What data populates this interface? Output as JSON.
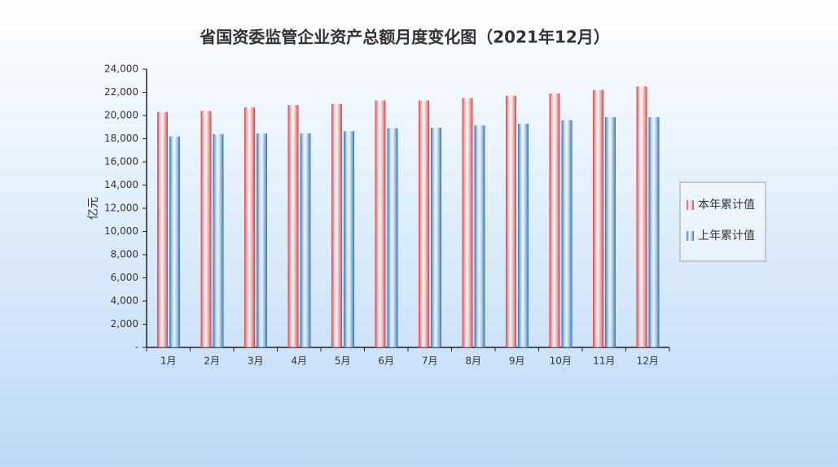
{
  "chart_data": {
    "type": "bar",
    "title": "省国资委监管企业资产总额月度变化图（2021年12月）",
    "y_label": "亿元",
    "categories": [
      "1月",
      "2月",
      "3月",
      "4月",
      "5月",
      "6月",
      "7月",
      "8月",
      "9月",
      "10月",
      "11月",
      "12月"
    ],
    "series": [
      {
        "name": "本年累计值",
        "color": "#e03a3a",
        "values": [
          20300,
          20400,
          20700,
          20900,
          21000,
          21300,
          21300,
          21500,
          21700,
          21900,
          22200,
          22500
        ]
      },
      {
        "name": "上年累计值",
        "color": "#2a72b8",
        "values": [
          18200,
          18400,
          18450,
          18450,
          18650,
          18900,
          18950,
          19150,
          19300,
          19600,
          19850,
          19850
        ]
      }
    ],
    "ylim": [
      0,
      24000
    ],
    "yticks": [
      {
        "value": 0,
        "label": "-"
      },
      {
        "value": 2000,
        "label": "2,000"
      },
      {
        "value": 4000,
        "label": "4,000"
      },
      {
        "value": 6000,
        "label": "6,000"
      },
      {
        "value": 8000,
        "label": "8,000"
      },
      {
        "value": 10000,
        "label": "10,000"
      },
      {
        "value": 12000,
        "label": "12,000"
      },
      {
        "value": 14000,
        "label": "14,000"
      },
      {
        "value": 16000,
        "label": "16,000"
      },
      {
        "value": 18000,
        "label": "18,000"
      },
      {
        "value": 20000,
        "label": "20,000"
      },
      {
        "value": 22000,
        "label": "22,000"
      },
      {
        "value": 24000,
        "label": "24,000"
      }
    ],
    "legend": "right"
  }
}
